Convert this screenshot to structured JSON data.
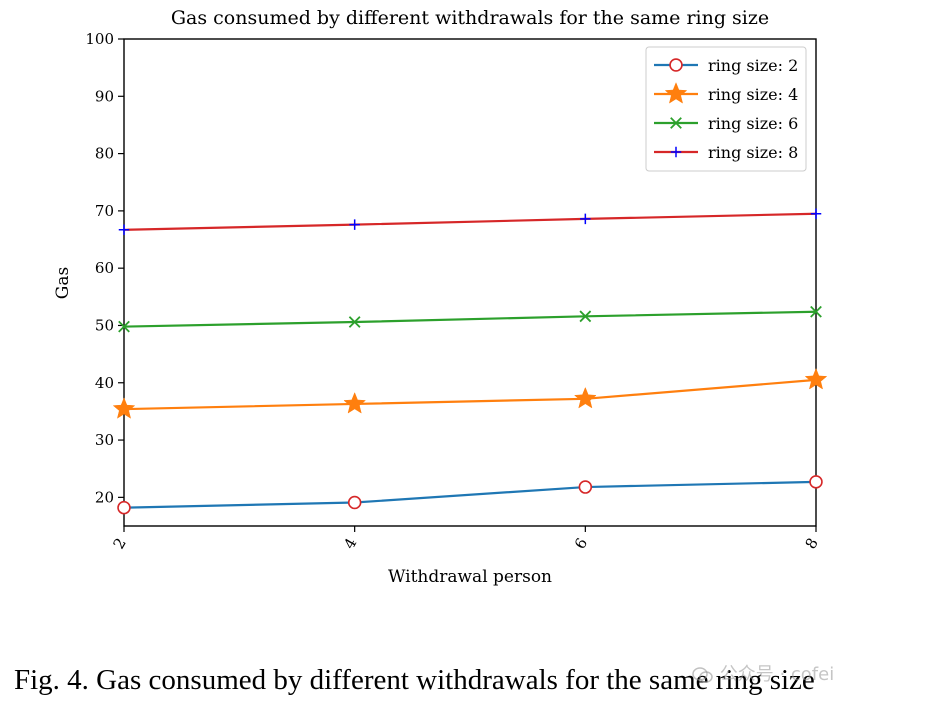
{
  "chart_data": {
    "type": "line",
    "title": "Gas consumed by different withdrawals for the same ring size",
    "xlabel": "Withdrawal person",
    "ylabel": "Gas",
    "x": [
      2,
      4,
      6,
      8
    ],
    "xticks": [
      "2",
      "4",
      "6",
      "8"
    ],
    "xlim": [
      2,
      8
    ],
    "ylim": [
      15,
      100
    ],
    "yticks": [
      20,
      30,
      40,
      50,
      60,
      70,
      80,
      90,
      100
    ],
    "grid": false,
    "legend_position": "top-right",
    "series": [
      {
        "name": "ring size: 2",
        "values": [
          18.2,
          19.1,
          21.8,
          22.7
        ],
        "color": "#1f77b4",
        "marker": "circle-open"
      },
      {
        "name": "ring size: 4",
        "values": [
          35.4,
          36.3,
          37.2,
          40.5
        ],
        "color": "#ff7f0e",
        "marker": "star"
      },
      {
        "name": "ring size: 6",
        "values": [
          49.8,
          50.6,
          51.6,
          52.4
        ],
        "color": "#2ca02c",
        "marker": "x"
      },
      {
        "name": "ring size: 8",
        "values": [
          66.7,
          67.6,
          68.6,
          69.5
        ],
        "color": "#d62728",
        "marker": "plus"
      }
    ],
    "marker_colors": {
      "circle-open": "#d62728",
      "plus": "#0000ff"
    }
  },
  "caption": {
    "text": "Fig. 4.  Gas consumed by different withdrawals for the same ring size"
  },
  "watermark": {
    "text": "公众号 · cofei"
  }
}
